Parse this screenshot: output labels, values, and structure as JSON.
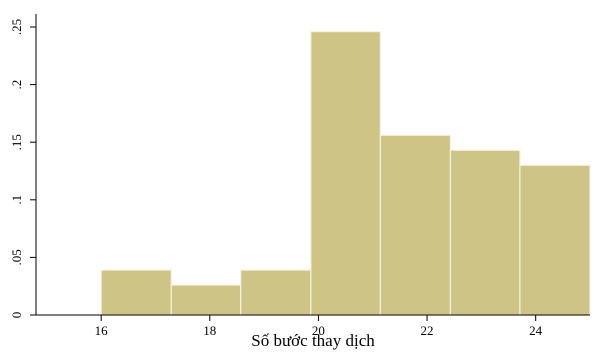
{
  "chart_data": {
    "type": "bar",
    "title": "",
    "xlabel": "Số bước thay dịch",
    "ylabel": "",
    "bin_edges": [
      16.0,
      17.29,
      18.57,
      19.86,
      21.14,
      22.43,
      23.71,
      25.0
    ],
    "values": [
      0.039,
      0.026,
      0.039,
      0.246,
      0.156,
      0.143,
      0.13
    ],
    "xlim": [
      14.8,
      25.0
    ],
    "ylim": [
      0,
      0.25
    ],
    "x_ticks": [
      16,
      18,
      20,
      22,
      24
    ],
    "x_tick_labels": [
      "16",
      "18",
      "20",
      "22",
      "24"
    ],
    "y_ticks": [
      0,
      0.05,
      0.1,
      0.15,
      0.2,
      0.25
    ],
    "y_tick_labels": [
      "0",
      ".05",
      ".1",
      ".15",
      ".2",
      ".25"
    ],
    "grid": false,
    "bar_color": "#cdc486"
  }
}
